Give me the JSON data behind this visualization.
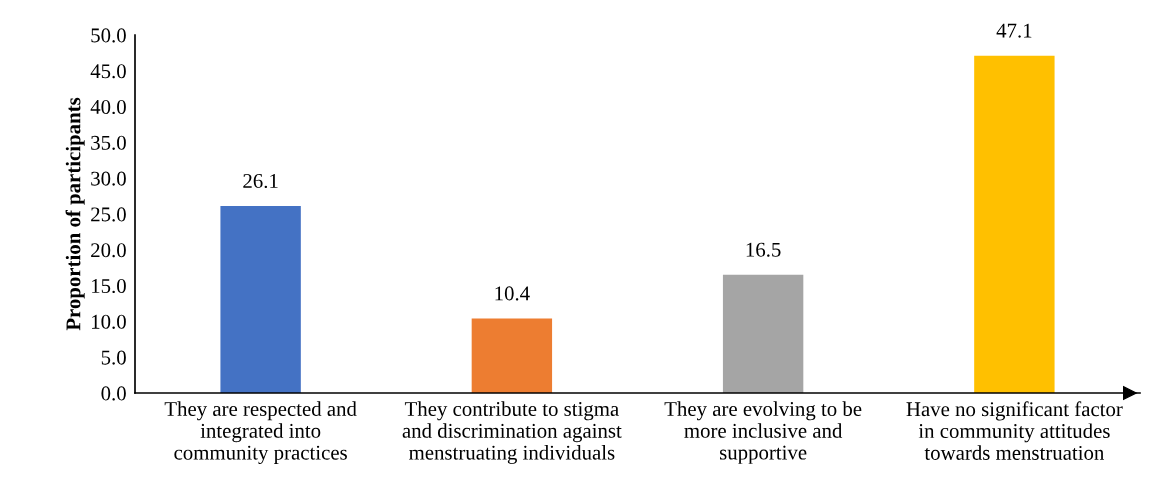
{
  "chart_data": {
    "type": "bar",
    "ylabel": "Proportion of participants",
    "categories": [
      "They are respected and\nintegrated into\ncommunity practices",
      "They contribute to stigma\nand discrimination against\nmenstruating individuals",
      "They are evolving to be\nmore inclusive and\nsupportive",
      "Have no significant factor\nin community attitudes\ntowards menstruation"
    ],
    "values": [
      26.1,
      10.4,
      16.5,
      47.1
    ],
    "colors": [
      "#4472c4",
      "#ed7d31",
      "#a5a5a5",
      "#ffc000"
    ],
    "ylim": [
      0,
      50
    ],
    "yticks": [
      {
        "value": 0,
        "label": "0.0"
      },
      {
        "value": 5,
        "label": "5.0"
      },
      {
        "value": 10,
        "label": "10.0"
      },
      {
        "value": 15,
        "label": "15.0"
      },
      {
        "value": 20,
        "label": "20.0"
      },
      {
        "value": 25,
        "label": "25.0"
      },
      {
        "value": 30,
        "label": "30.0"
      },
      {
        "value": 35,
        "label": "35.0"
      },
      {
        "value": 40,
        "label": "40.0"
      },
      {
        "value": 45,
        "label": "45.0"
      },
      {
        "value": 50,
        "label": "50.0"
      }
    ],
    "data_labels": true,
    "grid": false,
    "legend": false
  }
}
